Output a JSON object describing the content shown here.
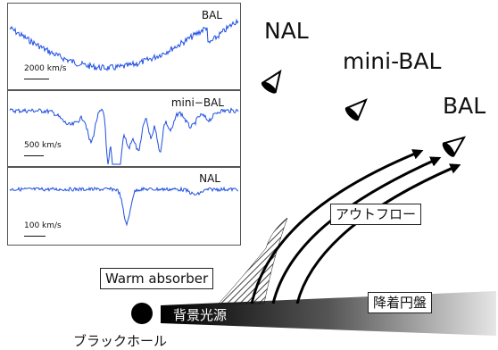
{
  "spectra": {
    "panels": [
      {
        "label": "BAL",
        "scale": "2000 km/s"
      },
      {
        "label": "mini−BAL",
        "scale": "500 km/s"
      },
      {
        "label": "NAL",
        "scale": "100 km/s"
      }
    ],
    "color": "#1f4fe0"
  },
  "viewers": {
    "nal": "NAL",
    "mini_bal": "mini-BAL",
    "bal": "BAL"
  },
  "labels": {
    "outflow": "アウトフロー",
    "warm_absorber": "Warm absorber",
    "background_source": "背景光源",
    "accretion_disk": "降着円盤",
    "black_hole": "ブラックホール"
  },
  "icons": {
    "eye": "eye-icon",
    "black_hole": "black-hole-icon"
  }
}
